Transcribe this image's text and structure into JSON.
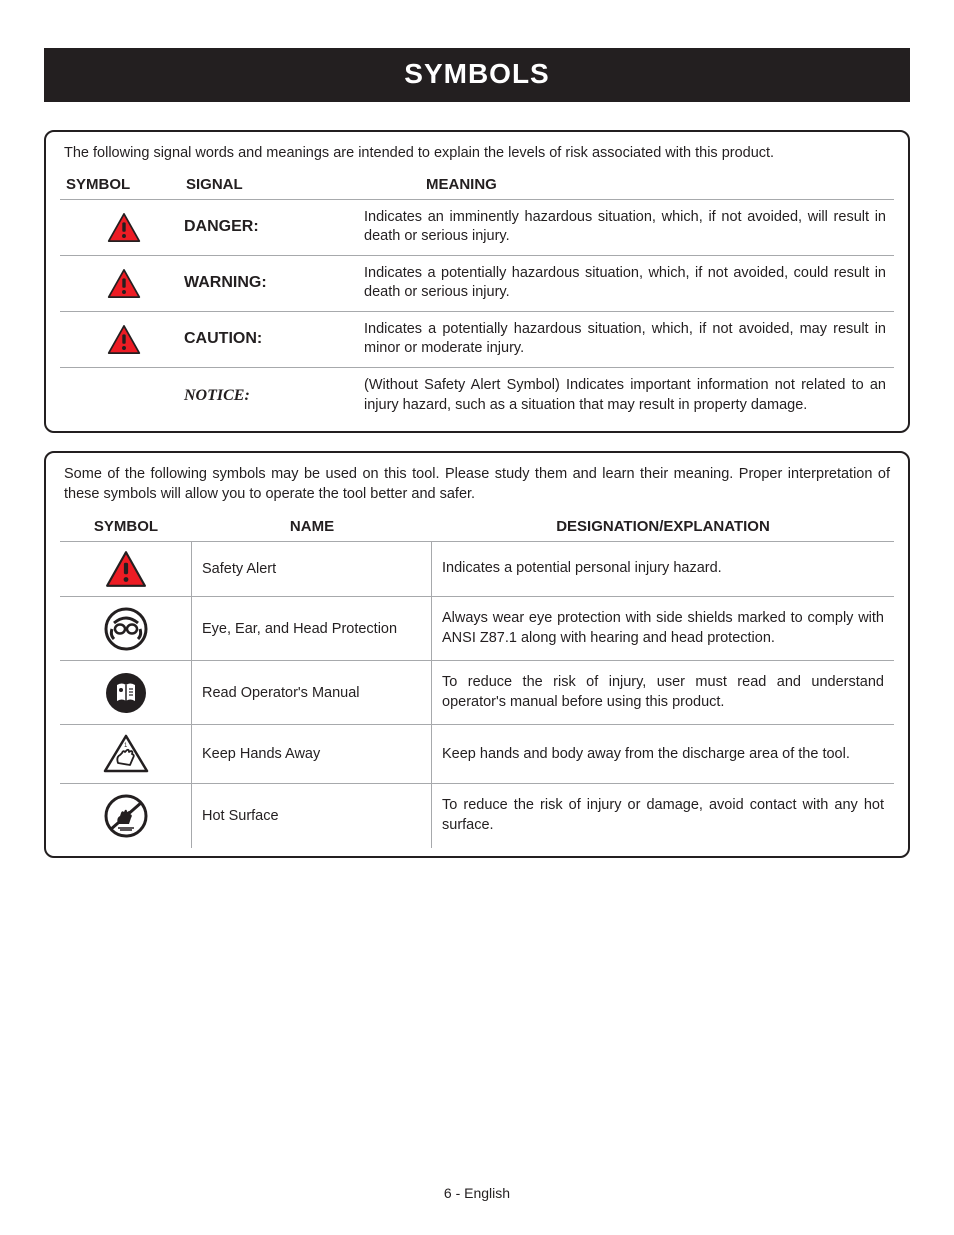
{
  "title": "SYMBOLS",
  "panel1": {
    "intro": "The following signal words and meanings are intended to explain the levels of risk associated with this product.",
    "headers": {
      "symbol": "SYMBOL",
      "signal": "SIGNAL",
      "meaning": "MEANING"
    },
    "rows": [
      {
        "icon": "alert-red",
        "signal": "DANGER:",
        "meaning": "Indicates an imminently hazardous situation, which, if not avoided, will result in death or serious injury."
      },
      {
        "icon": "alert-red",
        "signal": "WARNING:",
        "meaning": "Indicates a potentially hazardous situation, which, if not avoided, could result in death or serious injury."
      },
      {
        "icon": "alert-red",
        "signal": "CAUTION:",
        "meaning": "Indicates a potentially hazardous situation, which, if not avoided, may result in minor or moderate injury."
      },
      {
        "icon": "",
        "signal": "NOTICE:",
        "notice": true,
        "meaning": "(Without Safety Alert Symbol) Indicates important information not related to an injury hazard, such as a situation that may result in property damage."
      }
    ]
  },
  "panel2": {
    "intro": "Some of the following symbols may be used on this tool. Please study them and learn their meaning. Proper interpretation of these symbols will allow you to operate the tool better and safer.",
    "headers": {
      "symbol": "SYMBOL",
      "name": "NAME",
      "desc": "DESIGNATION/EXPLANATION"
    },
    "rows": [
      {
        "icon": "alert-red",
        "name": "Safety Alert",
        "desc": "Indicates a potential personal injury hazard."
      },
      {
        "icon": "ppe-face",
        "name": "Eye, Ear, and Head Protection",
        "desc": "Always wear eye protection with side shields marked to comply with ANSI Z87.1 along with hearing and head protection."
      },
      {
        "icon": "manual",
        "name": "Read Operator's Manual",
        "desc": "To reduce the risk of injury, user must read and understand operator's manual before using this product."
      },
      {
        "icon": "hands-away",
        "name": "Keep Hands Away",
        "desc": "Keep hands and body away from the discharge area of the tool."
      },
      {
        "icon": "hot-surface",
        "name": "Hot Surface",
        "desc": "To reduce the risk of injury or damage, avoid contact with any hot surface."
      }
    ]
  },
  "footer": "6 - English",
  "colors": {
    "accent_red": "#ed1c24",
    "black": "#231f20",
    "rule": "#a7a9ac"
  }
}
